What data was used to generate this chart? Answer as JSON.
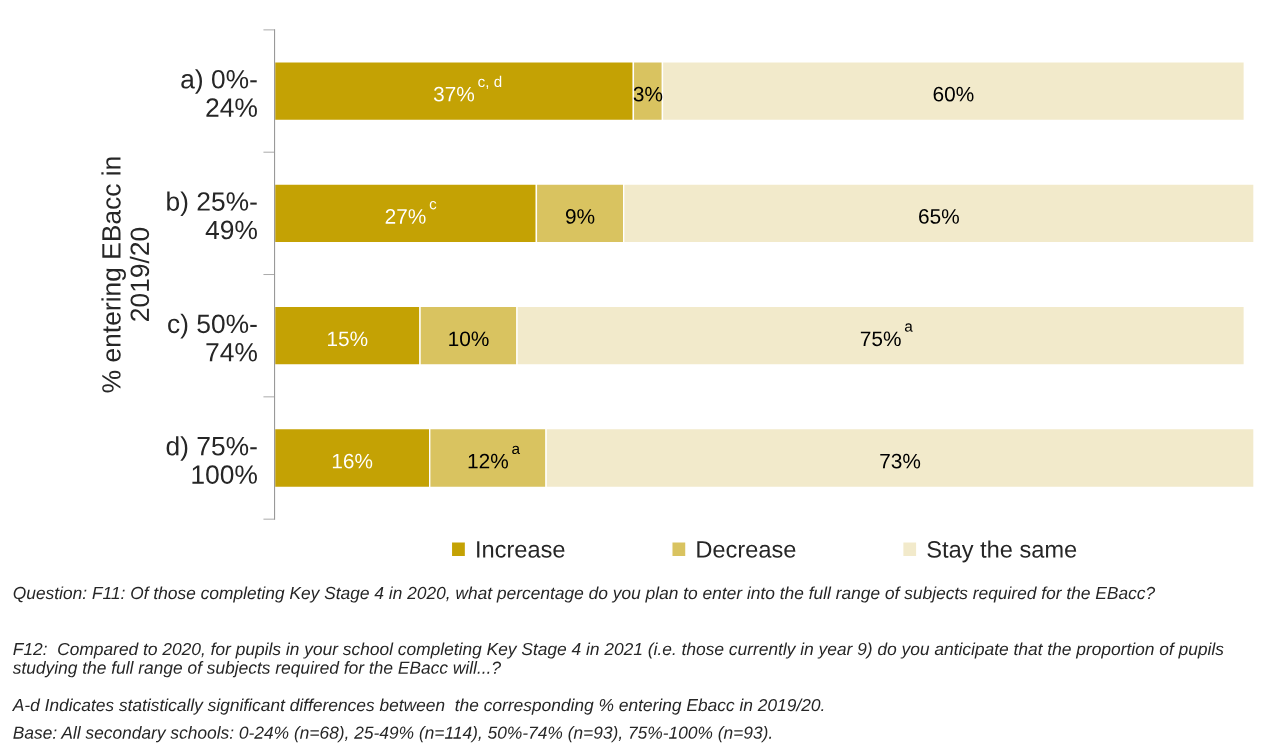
{
  "chart_data": {
    "type": "bar",
    "orientation": "horizontal",
    "stacked": true,
    "ylabel": "% entering EBacc in\n2019/20",
    "categories": [
      "a) 0%-\n24%",
      "b) 25%-\n49%",
      "c) 50%-\n74%",
      "d) 75%-\n100%"
    ],
    "series": [
      {
        "name": "Increase",
        "color": "#c4a204",
        "values": [
          37,
          27,
          15,
          16
        ],
        "value_labels": [
          "37%$^{c, d}$",
          "27%$^{c}$",
          "15%",
          "16%"
        ]
      },
      {
        "name": "Decrease",
        "color": "#d9c360",
        "values": [
          3,
          9,
          10,
          12
        ],
        "value_labels": [
          "3%",
          "9%",
          "10%",
          "12%$^{a}$"
        ]
      },
      {
        "name": "Stay the same",
        "color": "#f2eacb",
        "values": [
          60,
          65,
          75,
          73
        ],
        "value_labels": [
          "60%",
          "65%",
          "75%$^{a}$",
          "73%"
        ]
      }
    ],
    "tick_labels": "y",
    "grid": false,
    "legend": "bottom",
    "annotations": [
      "Question: F11: Of those completing Key Stage 4 in 2020, what percentage do you plan to enter into the full range of subjects required for the EBacc?",
      "F12:  Compared to 2020, for pupils in your school completing Key Stage 4 in 2021 (i.e. those currently in year 9) do you anticipate that the proportion of pupils studying the full range of subjects required for the EBacc will...?",
      "A-d Indicates statistically significant differences between  the corresponding % entering Ebacc in 2019/20.",
      "Base: All secondary schools: 0-24% (n=68), 25-49% (n=114), 50%-74% (n=93), 75%-100% (n=93)."
    ]
  }
}
